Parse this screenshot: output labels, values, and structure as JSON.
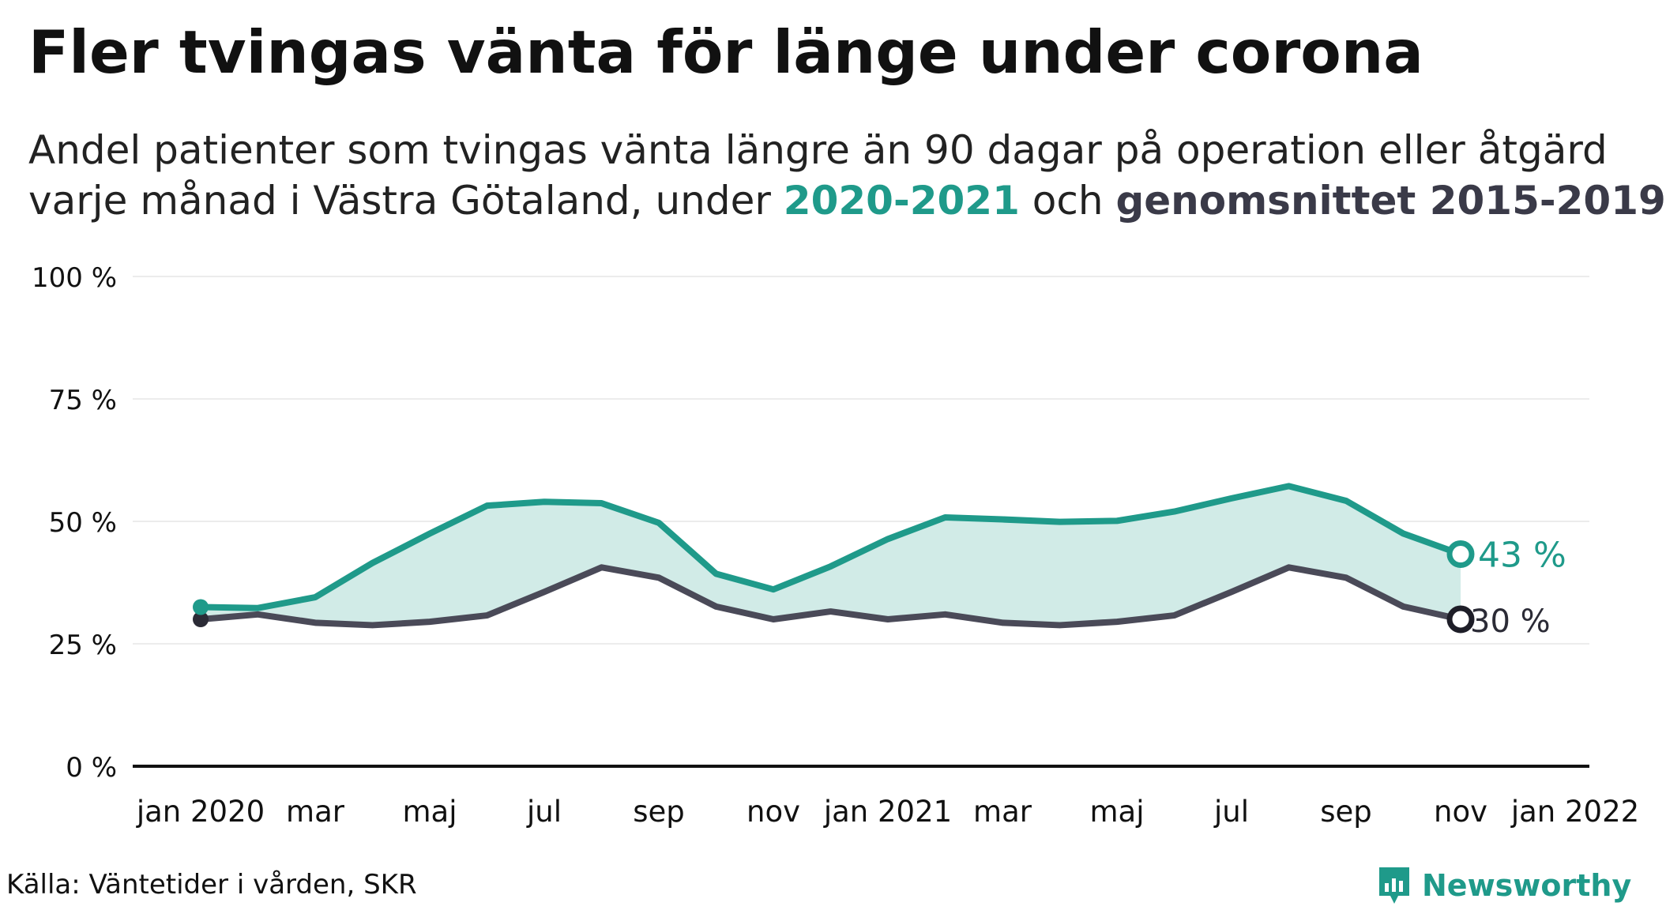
{
  "title": "Fler tvingas vänta för länge under corona",
  "subtitle": {
    "line1": "Andel patienter som tvingas vänta längre än 90 dagar på operation eller åtgärd",
    "line2_pre": "varje månad i Västra Götaland, under ",
    "line2_current": "2020-2021",
    "line2_mid": " och ",
    "line2_avg": "genomsnittet 2015-2019"
  },
  "source": "Källa: Väntetider i vården, SKR",
  "brand": {
    "name": "Newsworthy",
    "icon": "newsworthy-logo-icon"
  },
  "colors": {
    "current": "#1f9a8a",
    "average": "#4a4a58",
    "area": "#d1ebe7",
    "grid": "#e6e6e6",
    "axis": "#111111"
  },
  "chart_data": {
    "type": "line",
    "ylim": [
      0,
      100
    ],
    "y_ticks": [
      0,
      25,
      50,
      75,
      100
    ],
    "y_tick_labels": [
      "0 %",
      "25 %",
      "50 %",
      "75 %",
      "100 %"
    ],
    "x_tick_labels": [
      "jan 2020",
      "mar",
      "maj",
      "jul",
      "sep",
      "nov",
      "jan 2021",
      "mar",
      "maj",
      "jul",
      "sep",
      "nov",
      "jan 2022"
    ],
    "x": [
      "2020-01",
      "2020-02",
      "2020-03",
      "2020-04",
      "2020-05",
      "2020-06",
      "2020-07",
      "2020-08",
      "2020-09",
      "2020-10",
      "2020-11",
      "2020-12",
      "2021-01",
      "2021-02",
      "2021-03",
      "2021-04",
      "2021-05",
      "2021-06",
      "2021-07",
      "2021-08",
      "2021-09",
      "2021-10",
      "2021-11"
    ],
    "series": [
      {
        "name": "2020-2021",
        "values": [
          32.5,
          32.3,
          34.5,
          41.5,
          47.5,
          53.2,
          54.0,
          53.7,
          49.7,
          39.3,
          36.1,
          40.8,
          46.4,
          50.8,
          50.4,
          49.9,
          50.1,
          52.0,
          54.7,
          57.2,
          54.2,
          47.5,
          43.3
        ],
        "end_label": "43 %"
      },
      {
        "name": "genomsnittet 2015-2019",
        "values": [
          30.0,
          31.0,
          29.3,
          28.8,
          29.5,
          30.8,
          35.6,
          40.6,
          38.5,
          32.6,
          30.0,
          31.6,
          30.0,
          31.0,
          29.3,
          28.8,
          29.5,
          30.8,
          35.6,
          40.6,
          38.5,
          32.6,
          30.0
        ],
        "end_label": "30 %"
      }
    ],
    "grid": true,
    "legend": "none"
  }
}
